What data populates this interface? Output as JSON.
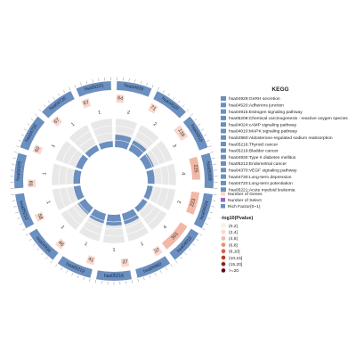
{
  "chart_data": {
    "type": "circos",
    "legend_title": "KEGG",
    "pathways": [
      {
        "id": "hsa04929",
        "name": "GnRH secretion",
        "genes": 64,
        "select": 2
      },
      {
        "id": "hsa04520",
        "name": "Adherens junction",
        "genes": 71,
        "select": 2
      },
      {
        "id": "hsa04915",
        "name": "Estrogen signaling pathway",
        "genes": 139,
        "select": 3
      },
      {
        "id": "hsa05208",
        "name": "Chemical carcinogenesis - reactive oxygen species",
        "genes": 225,
        "select": 4
      },
      {
        "id": "hsa04024",
        "name": "cAMP signaling pathway",
        "genes": 223,
        "select": 3
      },
      {
        "id": "hsa04010",
        "name": "MAPK signaling pathway",
        "genes": 301,
        "select": 4
      },
      {
        "id": "hsa04960",
        "name": "Aldosterone-regulated sodium reabsorption",
        "genes": 37,
        "select": 1
      },
      {
        "id": "hsa05216",
        "name": "Thyroid cancer",
        "genes": 37,
        "select": 1
      },
      {
        "id": "hsa05219",
        "name": "Bladder cancer",
        "genes": 41,
        "select": 1
      },
      {
        "id": "hsa04930",
        "name": "Type II diabetes mellitus",
        "genes": 46,
        "select": 1
      },
      {
        "id": "hsa05213",
        "name": "Endometrial cancer",
        "genes": 58,
        "select": 1
      },
      {
        "id": "hsa04370",
        "name": "VEGF signaling pathway",
        "genes": 59,
        "select": 1
      },
      {
        "id": "hsa04730",
        "name": "Long-term depression",
        "genes": 60,
        "select": 1
      },
      {
        "id": "hsa04720",
        "name": "Long-term potentiation",
        "genes": 67,
        "select": 1
      },
      {
        "id": "hsa05221",
        "name": "Acute myeloid leukemia",
        "genes": 67,
        "select": 1
      }
    ],
    "track_legend": [
      "Number of Genes",
      "Number of Select",
      "Rich Factor(0~1)"
    ],
    "pvalue_title": "-log10(Pvalue)",
    "pvalue_bins": [
      "(0,2]",
      "(2,4]",
      "(4,6]",
      "(6,8]",
      "(8,10]",
      "(10,15]",
      "(15,20]",
      ">=20"
    ],
    "colors": {
      "outer_band": "#6b8fbf",
      "genes_bar": "#f9d7cc",
      "genes_bar_strong": "#f2b8a6",
      "rich_fill": "#6b8fbf",
      "rich_bg": "#e8e8e8",
      "select_box": "#9467bd",
      "legend_box": "#6b8fbf",
      "pvalue_scale": [
        "#fdf0ea",
        "#fbd9cc",
        "#f6b9a3",
        "#ef8c6e",
        "#e05a40",
        "#c0392b",
        "#8e1f1f",
        "#5a0f0f"
      ]
    }
  }
}
